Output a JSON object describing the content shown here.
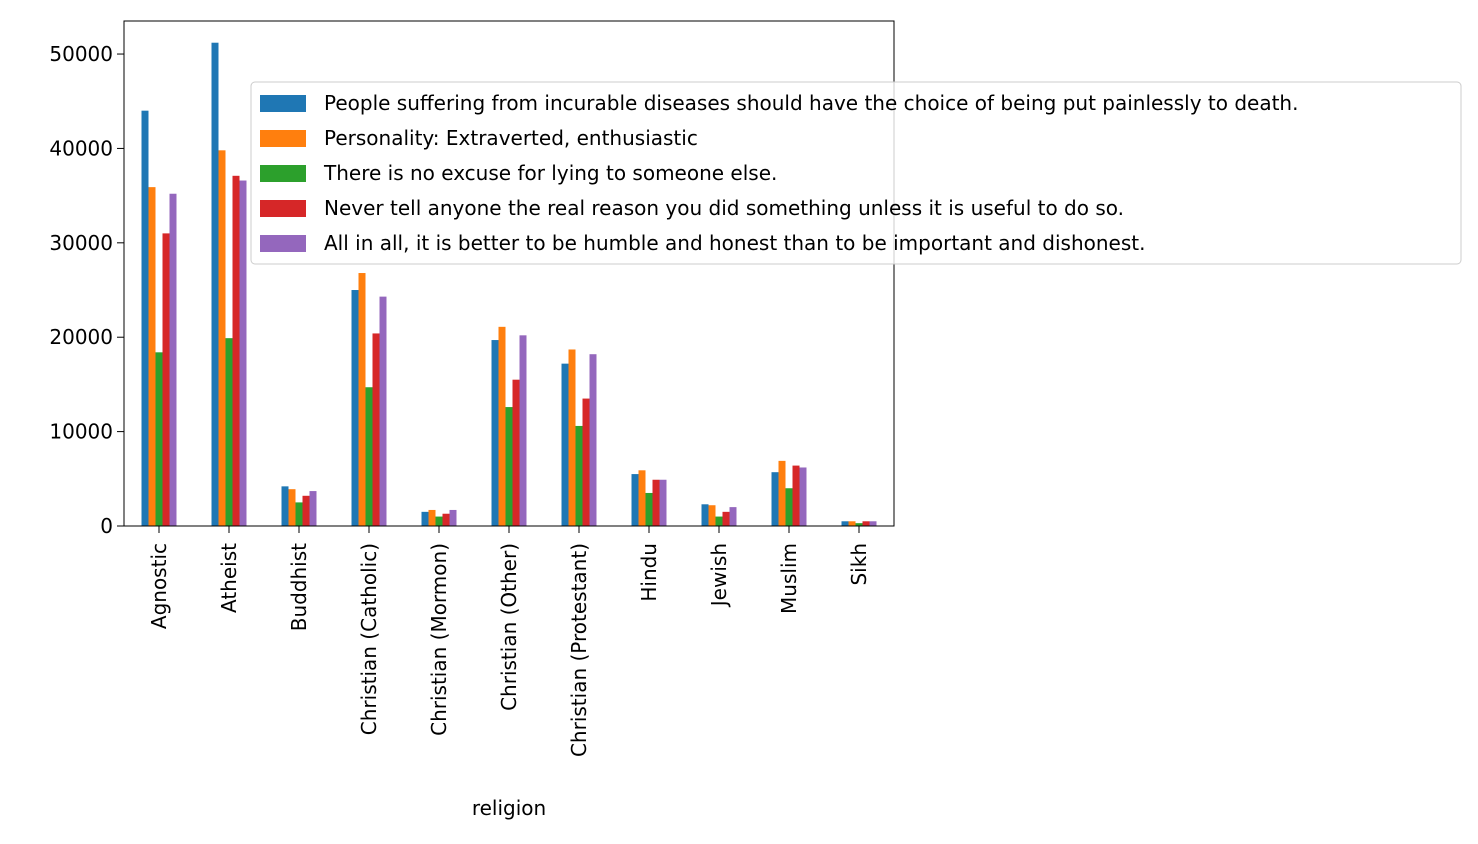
{
  "chart_data": {
    "type": "bar",
    "title": "",
    "xlabel": "religion",
    "ylabel": "",
    "ylim": [
      0,
      53500
    ],
    "yticks": [
      0,
      10000,
      20000,
      30000,
      40000,
      50000
    ],
    "grid": false,
    "legend_position": "upper right, extending beyond the axes",
    "categories": [
      "Agnostic",
      "Atheist",
      "Buddhist",
      "Christian (Catholic)",
      "Christian (Mormon)",
      "Christian (Other)",
      "Christian (Protestant)",
      "Hindu",
      "Jewish",
      "Muslim",
      "Sikh"
    ],
    "series": [
      {
        "name": "People suffering from incurable diseases should have the choice of being put painlessly to death.",
        "color": "#1f77b4",
        "values": [
          44000,
          51200,
          4200,
          25000,
          1500,
          19700,
          17200,
          5500,
          2300,
          5700,
          500
        ]
      },
      {
        "name": "Personality: Extraverted, enthusiastic",
        "color": "#ff7f0e",
        "values": [
          35900,
          39800,
          3900,
          26800,
          1700,
          21100,
          18700,
          5900,
          2200,
          6900,
          500
        ]
      },
      {
        "name": "There is no excuse for lying to someone else.",
        "color": "#2ca02c",
        "values": [
          18400,
          19900,
          2500,
          14700,
          1000,
          12600,
          10600,
          3500,
          1000,
          4000,
          300
        ]
      },
      {
        "name": "Never tell anyone the real reason you did something unless it is useful to do so.",
        "color": "#d62728",
        "values": [
          31000,
          37100,
          3200,
          20400,
          1300,
          15500,
          13500,
          4900,
          1500,
          6400,
          500
        ]
      },
      {
        "name": "All in all, it is better to be humble and honest than to be important and dishonest.",
        "color": "#9467bd",
        "values": [
          35200,
          36600,
          3700,
          24300,
          1700,
          20200,
          18200,
          4900,
          2000,
          6200,
          500
        ]
      }
    ]
  }
}
